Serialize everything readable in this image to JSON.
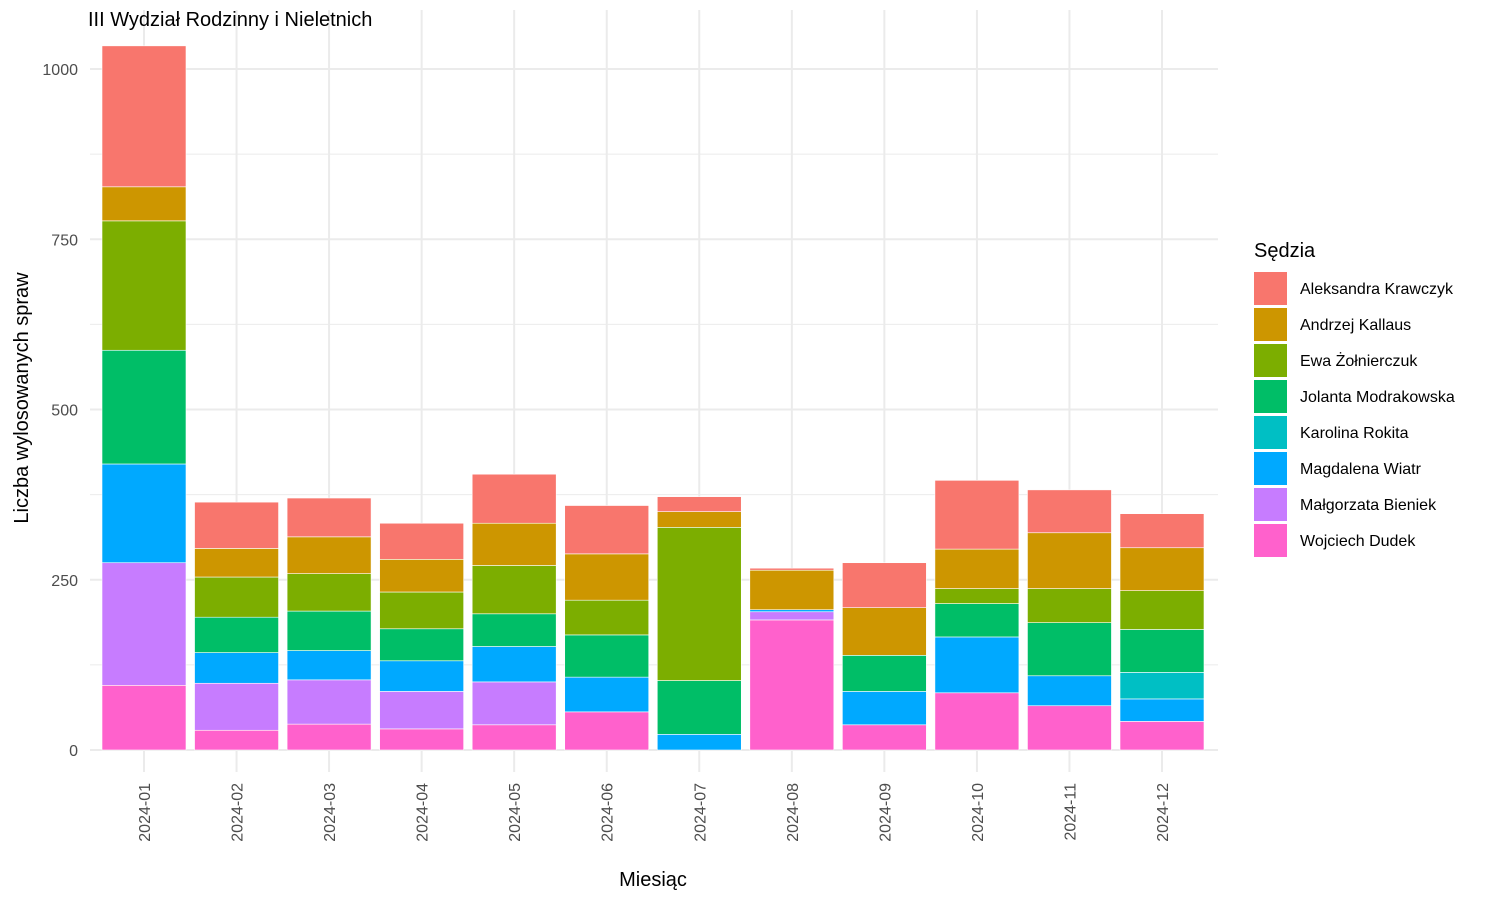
{
  "chart_data": {
    "type": "bar",
    "stacked": true,
    "title": "III Wydział Rodzinny i Nieletnich",
    "xlabel": "Miesiąc",
    "ylabel": "Liczba wylosowanych spraw",
    "ylim": [
      0,
      1050
    ],
    "y_ticks": [
      0,
      250,
      500,
      750,
      1000
    ],
    "grid": true,
    "legend_title": "Sędzia",
    "legend_position": "right",
    "categories": [
      "2024-01",
      "2024-02",
      "2024-03",
      "2024-04",
      "2024-05",
      "2024-06",
      "2024-07",
      "2024-08",
      "2024-09",
      "2024-10",
      "2024-11",
      "2024-12"
    ],
    "series": [
      {
        "name": "Aleksandra Krawczyk",
        "color": "#F8766D",
        "values": [
          207,
          68,
          57,
          53,
          72,
          71,
          22,
          3,
          66,
          101,
          63,
          50
        ]
      },
      {
        "name": "Andrzej Kallaus",
        "color": "#CD9600",
        "values": [
          50,
          42,
          54,
          48,
          62,
          68,
          23,
          58,
          70,
          58,
          82,
          63
        ]
      },
      {
        "name": "Ewa Żołnierczuk",
        "color": "#7CAE00",
        "values": [
          190,
          59,
          55,
          54,
          71,
          51,
          225,
          0,
          0,
          22,
          50,
          57
        ]
      },
      {
        "name": "Jolanta Modrakowska",
        "color": "#00BE67",
        "values": [
          167,
          52,
          58,
          47,
          48,
          62,
          79,
          0,
          53,
          49,
          78,
          63
        ]
      },
      {
        "name": "Karolina Rokita",
        "color": "#00BFC4",
        "values": [
          0,
          0,
          0,
          0,
          0,
          0,
          0,
          0,
          0,
          0,
          0,
          39
        ]
      },
      {
        "name": "Magdalena Wiatr",
        "color": "#00A9FF",
        "values": [
          145,
          45,
          43,
          45,
          52,
          51,
          23,
          3,
          49,
          82,
          44,
          33
        ]
      },
      {
        "name": "Małgorzata Bieniek",
        "color": "#C77CFF",
        "values": [
          180,
          69,
          65,
          55,
          63,
          0,
          0,
          12,
          0,
          0,
          0,
          0
        ]
      },
      {
        "name": "Wojciech Dudek",
        "color": "#FF61CC",
        "values": [
          95,
          29,
          38,
          31,
          37,
          56,
          0,
          191,
          37,
          84,
          65,
          42
        ]
      }
    ]
  }
}
